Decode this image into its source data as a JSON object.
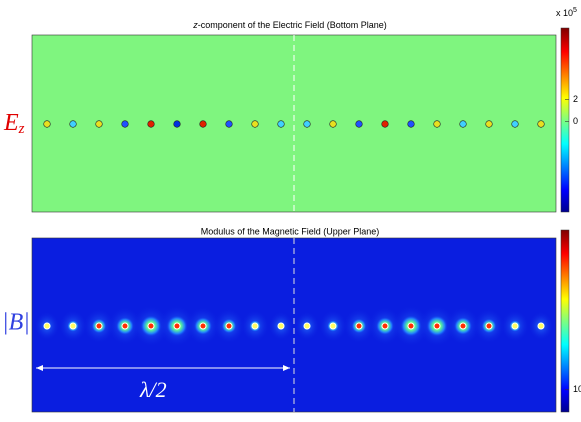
{
  "panels": [
    {
      "title_prefix": "z",
      "title": "-component of the Electric Field (Bottom Plane)",
      "side_label": "E",
      "side_label_sub": "z",
      "colorbar": {
        "exponent_label": "x 10",
        "exponent": 5,
        "clim": [
          -8.2,
          8.5
        ],
        "ticks": [
          2,
          0
        ]
      }
    },
    {
      "title": "Modulus of the Magnetic Field (Upper Plane)",
      "side_label": "|B|",
      "colorbar": {
        "clim": [
          0,
          82
        ],
        "ticks": [
          10
        ]
      }
    }
  ],
  "annotation": "λ/2"
}
